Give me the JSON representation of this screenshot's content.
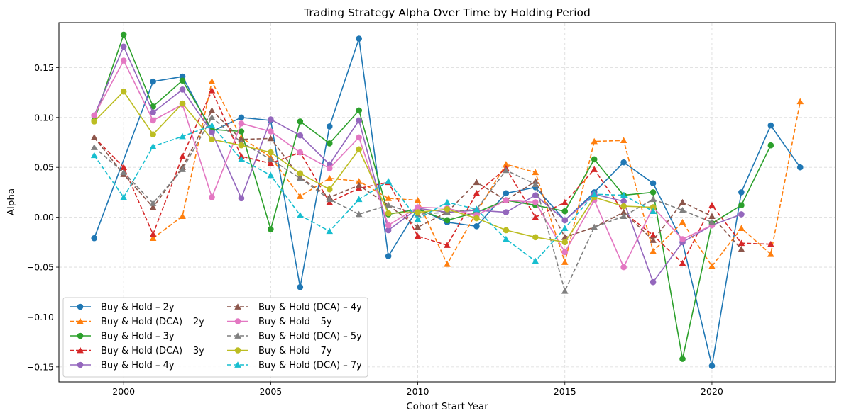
{
  "chart_data": {
    "type": "line",
    "title": "Trading Strategy Alpha Over Time by Holding Period",
    "xlabel": "Cohort Start Year",
    "ylabel": "Alpha",
    "xlim": [
      1997.8,
      2024.2
    ],
    "ylim": [
      -0.165,
      0.195
    ],
    "xticks": [
      2000,
      2005,
      2010,
      2015,
      2020
    ],
    "xtick_labels": [
      "2000",
      "2005",
      "2010",
      "2015",
      "2020"
    ],
    "yticks": [
      -0.15,
      -0.1,
      -0.05,
      0.0,
      0.05,
      0.1,
      0.15
    ],
    "ytick_labels": [
      "−0.15",
      "−0.10",
      "−0.05",
      "0.00",
      "0.05",
      "0.10",
      "0.15"
    ],
    "grid": true,
    "legend_position": "lower-left",
    "series": [
      {
        "name": "Buy & Hold – 2y",
        "color": "#1f77b4",
        "style": "solid",
        "marker": "circle",
        "x": [
          1999,
          2001,
          2002,
          2003,
          2004,
          2005,
          2006,
          2007,
          2008,
          2009,
          2010,
          2011,
          2012,
          2013,
          2014,
          2015,
          2016,
          2017,
          2018,
          2019,
          2020,
          2021,
          2022,
          2023
        ],
        "y": [
          -0.021,
          0.136,
          0.141,
          0.086,
          0.1,
          0.097,
          -0.07,
          0.091,
          0.179,
          -0.039,
          0.009,
          -0.005,
          -0.009,
          0.024,
          0.03,
          -0.003,
          0.025,
          0.055,
          0.034,
          -0.025,
          -0.149,
          0.025,
          0.092,
          0.05
        ]
      },
      {
        "name": "Buy & Hold (DCA) – 2y",
        "color": "#ff7f0e",
        "style": "dashed",
        "marker": "triangle",
        "x": [
          2001,
          2002,
          2003,
          2004,
          2005,
          2006,
          2007,
          2008,
          2009,
          2010,
          2011,
          2012,
          2013,
          2014,
          2015,
          2016,
          2017,
          2018,
          2019,
          2020,
          2021,
          2022,
          2023
        ],
        "y": [
          -0.021,
          0.001,
          0.136,
          0.08,
          0.06,
          0.021,
          0.039,
          0.036,
          0.019,
          0.017,
          -0.047,
          0.005,
          0.053,
          0.045,
          -0.045,
          0.076,
          0.077,
          -0.034,
          -0.005,
          -0.049,
          -0.011,
          -0.037,
          0.116
        ]
      },
      {
        "name": "Buy & Hold – 3y",
        "color": "#2ca02c",
        "style": "solid",
        "marker": "circle",
        "x": [
          1999,
          2000,
          2001,
          2002,
          2003,
          2004,
          2005,
          2006,
          2007,
          2008,
          2009,
          2010,
          2011,
          2012,
          2013,
          2014,
          2015,
          2016,
          2017,
          2018,
          2019,
          2020,
          2021,
          2022
        ],
        "y": [
          0.097,
          0.183,
          0.111,
          0.137,
          0.088,
          0.086,
          -0.012,
          0.096,
          0.074,
          0.107,
          0.003,
          0.008,
          -0.003,
          0.005,
          0.017,
          0.012,
          0.006,
          0.058,
          0.022,
          0.025,
          -0.142,
          -0.006,
          0.012,
          0.072
        ]
      },
      {
        "name": "Buy & Hold (DCA) – 3y",
        "color": "#d62728",
        "style": "dashed",
        "marker": "triangle",
        "x": [
          1999,
          2000,
          2001,
          2002,
          2003,
          2004,
          2005,
          2006,
          2007,
          2008,
          2009,
          2010,
          2011,
          2012,
          2013,
          2014,
          2015,
          2016,
          2017,
          2018,
          2019,
          2020,
          2021,
          2022
        ],
        "y": [
          0.08,
          0.05,
          -0.017,
          0.061,
          0.127,
          0.061,
          0.054,
          0.065,
          0.015,
          0.029,
          0.035,
          -0.019,
          -0.028,
          0.024,
          0.049,
          0.0,
          0.015,
          0.048,
          0.005,
          -0.018,
          -0.046,
          0.012,
          -0.026,
          -0.027
        ]
      },
      {
        "name": "Buy & Hold – 4y",
        "color": "#9467bd",
        "style": "solid",
        "marker": "circle",
        "x": [
          1999,
          2000,
          2001,
          2002,
          2003,
          2004,
          2005,
          2006,
          2007,
          2008,
          2009,
          2010,
          2011,
          2012,
          2013,
          2014,
          2015,
          2016,
          2017,
          2018,
          2019,
          2020,
          2021
        ],
        "y": [
          0.102,
          0.171,
          0.105,
          0.128,
          0.085,
          0.019,
          0.098,
          0.082,
          0.053,
          0.097,
          -0.013,
          0.009,
          0.005,
          0.007,
          0.005,
          0.022,
          -0.003,
          0.023,
          0.016,
          -0.065,
          -0.025,
          -0.008,
          0.003
        ]
      },
      {
        "name": "Buy & Hold (DCA) – 4y",
        "color": "#8c564b",
        "style": "dashed",
        "marker": "triangle",
        "x": [
          1999,
          2000,
          2001,
          2002,
          2003,
          2004,
          2005,
          2006,
          2007,
          2008,
          2009,
          2010,
          2011,
          2012,
          2013,
          2014,
          2015,
          2016,
          2017,
          2018,
          2019,
          2020,
          2021
        ],
        "y": [
          0.08,
          0.043,
          0.01,
          0.05,
          0.107,
          0.078,
          0.079,
          0.04,
          0.02,
          0.032,
          0.012,
          -0.01,
          0.005,
          0.035,
          0.017,
          0.036,
          -0.02,
          -0.01,
          0.005,
          -0.023,
          0.015,
          0.001,
          -0.032
        ]
      },
      {
        "name": "Buy & Hold – 5y",
        "color": "#e377c2",
        "style": "solid",
        "marker": "circle",
        "x": [
          1999,
          2000,
          2001,
          2002,
          2003,
          2004,
          2005,
          2006,
          2007,
          2008,
          2009,
          2010,
          2011,
          2012,
          2013,
          2014,
          2015,
          2016,
          2017,
          2018,
          2019,
          2020
        ],
        "y": [
          0.102,
          0.157,
          0.097,
          0.113,
          0.02,
          0.094,
          0.086,
          0.065,
          0.049,
          0.08,
          -0.008,
          0.01,
          0.009,
          0.002,
          0.017,
          0.015,
          -0.035,
          0.017,
          -0.05,
          0.01,
          -0.022,
          -0.008
        ]
      },
      {
        "name": "Buy & Hold (DCA) – 5y",
        "color": "#7f7f7f",
        "style": "dashed",
        "marker": "triangle",
        "x": [
          1999,
          2000,
          2001,
          2002,
          2003,
          2004,
          2005,
          2006,
          2007,
          2008,
          2009,
          2010,
          2011,
          2012,
          2013,
          2014,
          2015,
          2016,
          2017,
          2018,
          2019,
          2020
        ],
        "y": [
          0.07,
          0.045,
          0.014,
          0.048,
          0.1,
          0.075,
          0.058,
          0.039,
          0.018,
          0.003,
          0.012,
          0.003,
          0.005,
          0.008,
          0.047,
          0.033,
          -0.074,
          -0.01,
          0.001,
          0.018,
          0.007,
          -0.005
        ]
      },
      {
        "name": "Buy & Hold – 7y",
        "color": "#bcbd22",
        "style": "solid",
        "marker": "circle",
        "x": [
          1999,
          2000,
          2001,
          2002,
          2003,
          2004,
          2005,
          2006,
          2007,
          2008,
          2009,
          2010,
          2011,
          2012,
          2013,
          2014,
          2015,
          2016,
          2017,
          2018
        ],
        "y": [
          0.096,
          0.126,
          0.083,
          0.114,
          0.078,
          0.072,
          0.065,
          0.044,
          0.028,
          0.068,
          0.004,
          0.005,
          0.008,
          -0.001,
          -0.013,
          -0.02,
          -0.025,
          0.02,
          0.011,
          0.01
        ]
      },
      {
        "name": "Buy & Hold (DCA) – 7y",
        "color": "#17becf",
        "style": "dashed",
        "marker": "triangle",
        "x": [
          1999,
          2000,
          2001,
          2002,
          2003,
          2004,
          2005,
          2006,
          2007,
          2008,
          2009,
          2010,
          2011,
          2012,
          2013,
          2014,
          2015,
          2016,
          2017,
          2018
        ],
        "y": [
          0.062,
          0.02,
          0.071,
          0.081,
          0.092,
          0.058,
          0.042,
          0.002,
          -0.014,
          0.018,
          0.036,
          -0.002,
          0.015,
          0.008,
          -0.022,
          -0.044,
          -0.011,
          0.023,
          0.022,
          0.006
        ]
      }
    ]
  }
}
